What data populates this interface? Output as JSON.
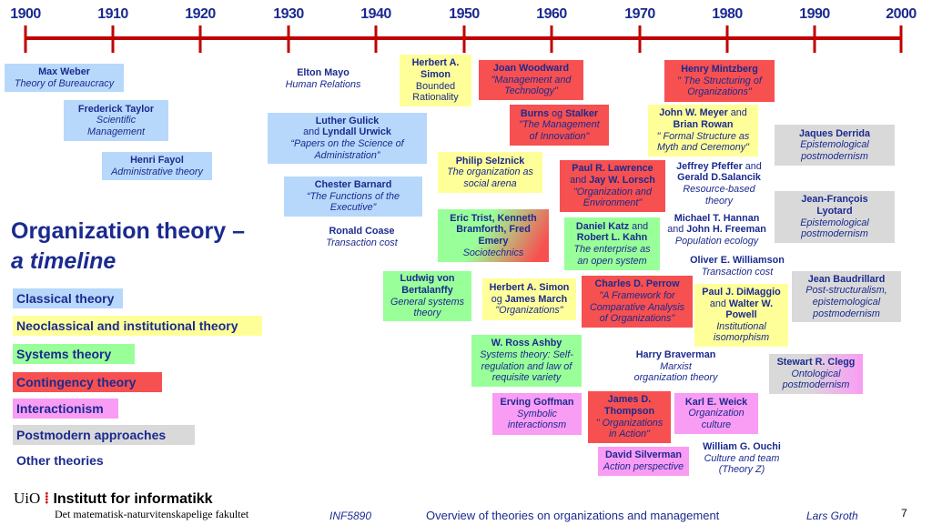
{
  "colors": {
    "classical": "#b7d8fb",
    "neoclassical": "#ffff99",
    "systems": "#99ff99",
    "contingency": "#f75050",
    "interactionism": "#f99cf4",
    "postmodern": "#d9d9d9",
    "axis": "#c00000",
    "text": "#1b2a8f"
  },
  "timeline": {
    "years": [
      "1900",
      "1910",
      "1920",
      "1930",
      "1940",
      "1950",
      "1960",
      "1970",
      "1980",
      "1990",
      "2000"
    ]
  },
  "title": {
    "line1": "Organization theory –",
    "line2": "a timeline"
  },
  "legend": [
    {
      "label": "Classical theory",
      "category": "classical"
    },
    {
      "label": "Neoclassical and institutional theory",
      "category": "neoclassical"
    },
    {
      "label": "Systems theory",
      "category": "systems"
    },
    {
      "label": "Contingency theory",
      "category": "contingency"
    },
    {
      "label": "Interactionism",
      "category": "interactionism"
    },
    {
      "label": "Postmodern approaches",
      "category": "postmodern"
    },
    {
      "label": "Other theories",
      "category": "other"
    }
  ],
  "theories": [
    {
      "category": "classical",
      "lines": [
        [
          [
            "Max Weber",
            "b"
          ]
        ],
        [
          [
            "Theory of Bureaucracy",
            "i"
          ]
        ]
      ]
    },
    {
      "category": "classical",
      "lines": [
        [
          [
            "Frederick Taylor",
            "b"
          ]
        ],
        [
          [
            "Scientific",
            "i"
          ]
        ],
        [
          [
            "Management",
            "i"
          ]
        ]
      ]
    },
    {
      "category": "classical",
      "lines": [
        [
          [
            "Henri Fayol",
            "b"
          ]
        ],
        [
          [
            "Administrative theory",
            "i"
          ]
        ]
      ]
    },
    {
      "category": "other",
      "lines": [
        [
          [
            "Elton Mayo",
            "b"
          ]
        ],
        [
          [
            "Human Relations",
            "i"
          ]
        ]
      ]
    },
    {
      "category": "classical",
      "lines": [
        [
          [
            "Luther Gulick",
            "b"
          ]
        ],
        [
          [
            "and ",
            "r"
          ],
          [
            "Lyndall Urwick",
            "b"
          ]
        ],
        [
          [
            "“Papers on the Science of",
            "i"
          ]
        ],
        [
          [
            "Administration”",
            "i"
          ]
        ]
      ]
    },
    {
      "category": "classical",
      "lines": [
        [
          [
            "Chester Barnard",
            "b"
          ]
        ],
        [
          [
            "“The Functions of the",
            "i"
          ]
        ],
        [
          [
            "Executive”",
            "i"
          ]
        ]
      ]
    },
    {
      "category": "other",
      "lines": [
        [
          [
            "Ronald Coase",
            "b"
          ]
        ],
        [
          [
            "Transaction cost",
            "i"
          ]
        ]
      ]
    },
    {
      "category": "neoclassical",
      "lines": [
        [
          [
            "Herbert A.",
            "b"
          ]
        ],
        [
          [
            "Simon",
            "b"
          ]
        ],
        [
          [
            "Bounded",
            "r"
          ]
        ],
        [
          [
            "Rationality",
            "r"
          ]
        ]
      ]
    },
    {
      "category": "contingency",
      "lines": [
        [
          [
            "Joan Woodward",
            "b"
          ]
        ],
        [
          [
            "\"Management and",
            "i"
          ]
        ],
        [
          [
            "Technology\"",
            "i"
          ]
        ]
      ]
    },
    {
      "category": "contingency",
      "lines": [
        [
          [
            "Burns",
            "b"
          ],
          [
            " og ",
            "r"
          ],
          [
            "Stalker",
            "b"
          ]
        ],
        [
          [
            "\"The Management",
            "i"
          ]
        ],
        [
          [
            "of Innovation\"",
            "i"
          ]
        ]
      ]
    },
    {
      "category": "neoclassical",
      "lines": [
        [
          [
            "Philip Selznick",
            "b"
          ]
        ],
        [
          [
            "The organization as",
            "i"
          ]
        ],
        [
          [
            "social arena",
            "i"
          ]
        ]
      ]
    },
    {
      "category": "systems-contingency",
      "lines": [
        [
          [
            "Eric Trist, Kenneth",
            "b"
          ]
        ],
        [
          [
            "Bramforth, Fred",
            "b"
          ]
        ],
        [
          [
            "Emery",
            "b"
          ]
        ],
        [
          [
            "Sociotechnics",
            "i"
          ]
        ]
      ]
    },
    {
      "category": "systems",
      "lines": [
        [
          [
            "Ludwig von",
            "b"
          ]
        ],
        [
          [
            "Bertalanffy",
            "b"
          ]
        ],
        [
          [
            "General systems",
            "i"
          ]
        ],
        [
          [
            "theory",
            "i"
          ]
        ]
      ]
    },
    {
      "category": "neoclassical",
      "lines": [
        [
          [
            "Herbert A. Simon",
            "b"
          ]
        ],
        [
          [
            "og ",
            "r"
          ],
          [
            "James March",
            "b"
          ]
        ],
        [
          [
            "\"Organizations\"",
            "i"
          ]
        ]
      ]
    },
    {
      "category": "systems",
      "lines": [
        [
          [
            "W. Ross Ashby",
            "b"
          ]
        ],
        [
          [
            "Systems theory: Self-",
            "i"
          ]
        ],
        [
          [
            "regulation and law of",
            "i"
          ]
        ],
        [
          [
            "requisite variety",
            "i"
          ]
        ]
      ]
    },
    {
      "category": "interactionism",
      "lines": [
        [
          [
            "Erving Goffman",
            "b"
          ]
        ],
        [
          [
            "Symbolic",
            "i"
          ]
        ],
        [
          [
            "interactionsm",
            "i"
          ]
        ]
      ]
    },
    {
      "category": "contingency",
      "lines": [
        [
          [
            "James D.",
            "b"
          ]
        ],
        [
          [
            "Thompson",
            "b"
          ]
        ],
        [
          [
            "\" Organizations",
            "i"
          ]
        ],
        [
          [
            "in Action\"",
            "i"
          ]
        ]
      ]
    },
    {
      "category": "interactionism",
      "lines": [
        [
          [
            "David Silverman",
            "b"
          ]
        ],
        [
          [
            "Action perspective",
            "i"
          ]
        ]
      ]
    },
    {
      "category": "contingency",
      "lines": [
        [
          [
            "Paul R.  Lawrence",
            "b"
          ]
        ],
        [
          [
            "and ",
            "r"
          ],
          [
            "Jay W. Lorsch",
            "b"
          ]
        ],
        [
          [
            "\"Organization and",
            "i"
          ]
        ],
        [
          [
            "Environment\"",
            "i"
          ]
        ]
      ]
    },
    {
      "category": "systems",
      "lines": [
        [
          [
            "Daniel Katz",
            "b"
          ],
          [
            " and",
            "r"
          ]
        ],
        [
          [
            "Robert L. Kahn",
            "b"
          ]
        ],
        [
          [
            "The enterprise as",
            "i"
          ]
        ],
        [
          [
            "an open system",
            "i"
          ]
        ]
      ]
    },
    {
      "category": "contingency",
      "lines": [
        [
          [
            "Charles D. Perrow",
            "b"
          ]
        ],
        [
          [
            "\"A Framework for",
            "i"
          ]
        ],
        [
          [
            "Comparative Analysis",
            "i"
          ]
        ],
        [
          [
            "of Organizations\"",
            "i"
          ]
        ]
      ]
    },
    {
      "category": "contingency",
      "lines": [
        [
          [
            "Henry Mintzberg",
            "b"
          ]
        ],
        [
          [
            "\" The Structuring of",
            "i"
          ]
        ],
        [
          [
            "Organizations\"",
            "i"
          ]
        ]
      ]
    },
    {
      "category": "neoclassical",
      "lines": [
        [
          [
            "John W. Meyer",
            "b"
          ],
          [
            " and",
            "r"
          ]
        ],
        [
          [
            "Brian Rowan",
            "b"
          ]
        ],
        [
          [
            "\" Formal Structure as",
            "i"
          ]
        ],
        [
          [
            "Myth and Ceremony\"",
            "i"
          ]
        ]
      ]
    },
    {
      "category": "other",
      "lines": [
        [
          [
            "Jeffrey Pfeffer",
            "b"
          ],
          [
            " and",
            "r"
          ]
        ],
        [
          [
            "Gerald D.Salancik",
            "b"
          ]
        ],
        [
          [
            "Resource-based",
            "i"
          ]
        ],
        [
          [
            "theory",
            "i"
          ]
        ]
      ]
    },
    {
      "category": "other",
      "lines": [
        [
          [
            "Michael T. Hannan",
            "b"
          ]
        ],
        [
          [
            "and ",
            "r"
          ],
          [
            "John H. Freeman",
            "b"
          ]
        ],
        [
          [
            "Population ecology",
            "i"
          ]
        ]
      ]
    },
    {
      "category": "other",
      "lines": [
        [
          [
            "Oliver E. Williamson",
            "b"
          ]
        ],
        [
          [
            "Transaction cost",
            "i"
          ]
        ]
      ]
    },
    {
      "category": "neoclassical",
      "lines": [
        [
          [
            "Paul J. DiMaggio",
            "b"
          ]
        ],
        [
          [
            "and ",
            "r"
          ],
          [
            "Walter W.",
            "b"
          ]
        ],
        [
          [
            "Powell",
            "b"
          ]
        ],
        [
          [
            "Institutional",
            "i"
          ]
        ],
        [
          [
            "isomorphism",
            "i"
          ]
        ]
      ]
    },
    {
      "category": "other",
      "lines": [
        [
          [
            "Harry Braverman",
            "b"
          ]
        ],
        [
          [
            "Marxist",
            "i"
          ]
        ],
        [
          [
            "organization theory",
            "i"
          ]
        ]
      ]
    },
    {
      "category": "interactionism",
      "lines": [
        [
          [
            "Karl E. Weick",
            "b"
          ]
        ],
        [
          [
            "Organization",
            "i"
          ]
        ],
        [
          [
            "culture",
            "i"
          ]
        ]
      ]
    },
    {
      "category": "other",
      "lines": [
        [
          [
            "William G. Ouchi",
            "b"
          ]
        ],
        [
          [
            "Culture and team",
            "i"
          ]
        ],
        [
          [
            "(Theory Z)",
            "i"
          ]
        ]
      ]
    },
    {
      "category": "postmodern",
      "lines": [
        [
          [
            "Jaques Derrida",
            "b"
          ]
        ],
        [
          [
            "Epistemological",
            "i"
          ]
        ],
        [
          [
            "postmodernism",
            "i"
          ]
        ]
      ]
    },
    {
      "category": "postmodern",
      "lines": [
        [
          [
            "Jean-François",
            "b"
          ]
        ],
        [
          [
            "Lyotard",
            "b"
          ]
        ],
        [
          [
            "Epistemological",
            "i"
          ]
        ],
        [
          [
            "postmodernism",
            "i"
          ]
        ]
      ]
    },
    {
      "category": "postmodern",
      "lines": [
        [
          [
            "Jean Baudrillard",
            "b"
          ]
        ],
        [
          [
            "Post-structuralism,",
            "i"
          ]
        ],
        [
          [
            "epistemological",
            "i"
          ]
        ],
        [
          [
            "postmodernism",
            "i"
          ]
        ]
      ]
    },
    {
      "category": "postmodern-interactionism",
      "lines": [
        [
          [
            "Stewart R. Clegg",
            "b"
          ]
        ],
        [
          [
            "Ontological",
            "i"
          ]
        ],
        [
          [
            "postmodernism",
            "i"
          ]
        ]
      ]
    }
  ],
  "footer": {
    "uio": "UiO",
    "institute": "Institutt for informatikk",
    "faculty": "Det matematisk-naturvitenskapelige fakultet",
    "course": "INF5890",
    "subject": "Overview of theories on organizations and management",
    "author": "Lars Groth",
    "page": "7"
  }
}
